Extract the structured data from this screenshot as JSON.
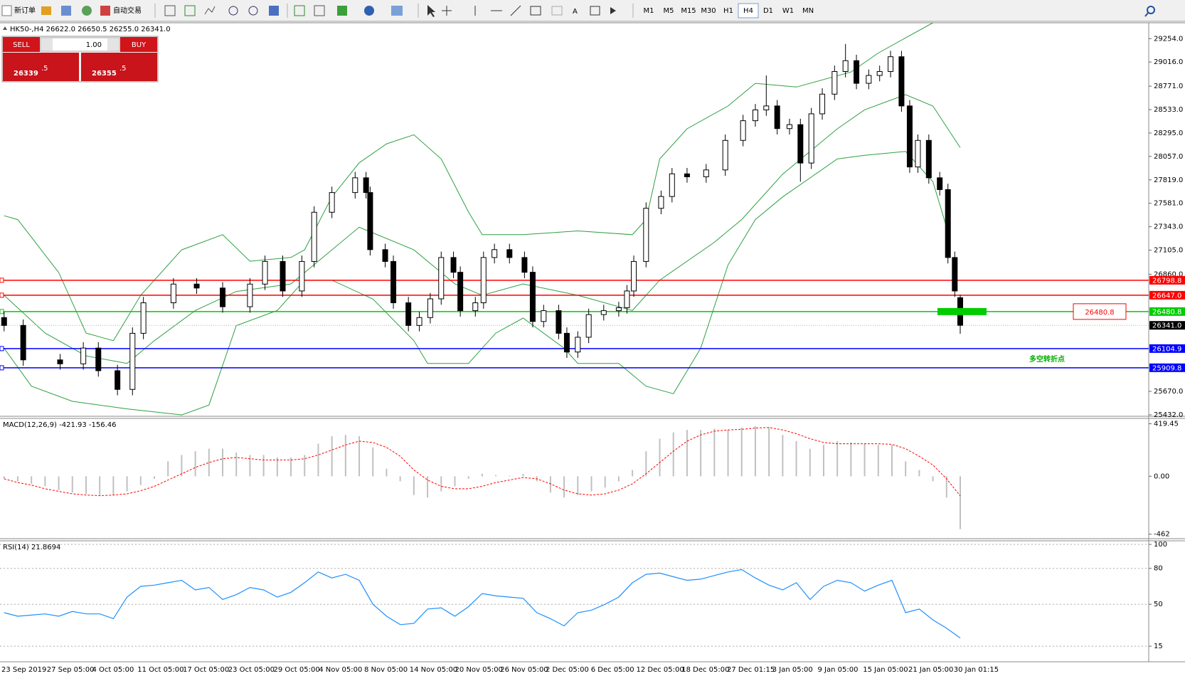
{
  "toolbar": {
    "new_order": "新订单",
    "auto_trading": "自动交易",
    "timeframes": [
      "M1",
      "M5",
      "M15",
      "M30",
      "H1",
      "H4",
      "D1",
      "W1",
      "MN"
    ]
  },
  "header": "HK50-,H4  26622.0 26650.5 26255.0 26341.0",
  "trade_panel": {
    "sell": "SELL",
    "lot": "1.00",
    "buy": "BUY",
    "bid": "26339",
    "bid_frac": ".5",
    "ask": "26355",
    "ask_frac": ".5"
  },
  "chart_data": [
    {
      "type": "candlestick",
      "xlim": [
        -0.3,
        83.8
      ],
      "ylim": [
        25417,
        29415
      ],
      "yticks": [
        {
          "value": 29254,
          "label": "29254.0"
        },
        {
          "value": 29016,
          "label": "29016.0"
        },
        {
          "value": 28771,
          "label": "28771.0"
        },
        {
          "value": 28533,
          "label": "28533.0"
        },
        {
          "value": 28295,
          "label": "28295.0"
        },
        {
          "value": 28057,
          "label": "28057.0"
        },
        {
          "value": 27819,
          "label": "27819.0"
        },
        {
          "value": 27581,
          "label": "27581.0"
        },
        {
          "value": 27343,
          "label": "27343.0"
        },
        {
          "value": 27105,
          "label": "27105.0"
        },
        {
          "value": 26860,
          "label": "26860.0"
        },
        {
          "value": 25670,
          "label": "25670.0"
        },
        {
          "value": 25432,
          "label": "25432.0"
        }
      ],
      "xtick_labels": [
        "23 Sep 2019",
        "27 Sep 05:00",
        "4 Oct 05:00",
        "11 Oct 05:00",
        "17 Oct 05:00",
        "23 Oct 05:00",
        "29 Oct 05:00",
        "4 Nov 05:00",
        "8 Nov 05:00",
        "14 Nov 05:00",
        "20 Nov 05:00",
        "26 Nov 05:00",
        "2 Dec 05:00",
        "6 Dec 05:00",
        "12 Dec 05:00",
        "18 Dec 05:00",
        "27 Dec 01:15",
        "3 Jan 05:00",
        "9 Jan 05:00",
        "15 Jan 05:00",
        "21 Jan 05:00",
        "30 Jan 01:15"
      ],
      "x": [
        0,
        1.4,
        4.1,
        5.8,
        6.9,
        8.3,
        9.4,
        10.2,
        12.4,
        14.1,
        16.0,
        18.0,
        19.1,
        20.4,
        21.8,
        22.7,
        24.0,
        25.7,
        26.5,
        26.8,
        27.9,
        28.5,
        29.6,
        30.4,
        31.2,
        32.0,
        32.9,
        33.4,
        34.5,
        35.1,
        35.9,
        37.0,
        38.1,
        38.7,
        39.5,
        40.6,
        41.2,
        42.0,
        42.8,
        43.9,
        45.0,
        45.6,
        46.1,
        47.0,
        48.1,
        48.9,
        50.0,
        51.4,
        52.8,
        54.1,
        55.0,
        55.8,
        56.6,
        57.5,
        58.3,
        59.1,
        59.9,
        60.8,
        61.6,
        62.4,
        63.3,
        64.1,
        64.9,
        65.7,
        66.3,
        66.9,
        67.7,
        68.5,
        69.1,
        69.6,
        70.0
      ],
      "open": [
        26420,
        26340,
        25990,
        25950,
        26110,
        25880,
        25690,
        26260,
        26570,
        26760,
        26720,
        26530,
        26760,
        26990,
        26690,
        26990,
        27490,
        27690,
        27840,
        27690,
        27110,
        26990,
        26570,
        26340,
        26420,
        26610,
        27030,
        26880,
        26490,
        26570,
        27030,
        27110,
        27030,
        26880,
        26380,
        26490,
        26260,
        26070,
        26220,
        26450,
        26490,
        26520,
        26690,
        26990,
        27530,
        27650,
        27880,
        27850,
        27920,
        28220,
        28420,
        28530,
        28570,
        28340,
        28380,
        27990,
        28490,
        28690,
        28920,
        29030,
        28800,
        28880,
        28920,
        29070,
        28570,
        27950,
        28220,
        27840,
        27720,
        27030,
        26622
      ],
      "high": [
        26480,
        26400,
        26050,
        26170,
        26170,
        25940,
        26320,
        26630,
        26820,
        26820,
        26780,
        26820,
        27050,
        27050,
        27050,
        27550,
        27750,
        27900,
        27900,
        27750,
        27170,
        27050,
        26630,
        26480,
        26670,
        27090,
        27090,
        26940,
        26630,
        27090,
        27170,
        27170,
        27090,
        26940,
        26550,
        26550,
        26320,
        26280,
        26510,
        26550,
        26580,
        26750,
        27050,
        27590,
        27710,
        27940,
        27940,
        27980,
        28280,
        28480,
        28590,
        28880,
        28630,
        28440,
        28440,
        28550,
        28750,
        28980,
        29200,
        29090,
        28940,
        28980,
        29130,
        29130,
        28630,
        28280,
        28280,
        27900,
        27780,
        27090,
        26650.5
      ],
      "low": [
        26280,
        25930,
        25890,
        25890,
        25820,
        25630,
        25630,
        26200,
        26510,
        26660,
        26470,
        26470,
        26700,
        26630,
        26630,
        26930,
        27430,
        27630,
        27630,
        27050,
        26930,
        26510,
        26280,
        26280,
        26360,
        26550,
        26820,
        26430,
        26430,
        26510,
        26970,
        26970,
        26820,
        26320,
        26320,
        26200,
        26010,
        26010,
        26160,
        26390,
        26430,
        26460,
        26630,
        26930,
        27470,
        27590,
        27790,
        27790,
        27860,
        28160,
        28360,
        28470,
        28280,
        28280,
        27800,
        27930,
        28430,
        28630,
        28860,
        28740,
        28740,
        28820,
        28860,
        28510,
        27890,
        27890,
        27780,
        27660,
        26970,
        26630,
        26255
      ],
      "close": [
        26340,
        25990,
        25950,
        26110,
        25880,
        25690,
        26260,
        26570,
        26760,
        26720,
        26530,
        26760,
        26990,
        26690,
        26990,
        27490,
        27690,
        27840,
        27690,
        27110,
        26990,
        26570,
        26340,
        26420,
        26610,
        27030,
        26880,
        26490,
        26570,
        27030,
        27110,
        27030,
        26880,
        26380,
        26490,
        26260,
        26070,
        26220,
        26450,
        26490,
        26520,
        26690,
        26990,
        27530,
        27650,
        27880,
        27850,
        27920,
        28220,
        28420,
        28530,
        28570,
        28340,
        28380,
        27990,
        28490,
        28690,
        28920,
        29030,
        28800,
        28880,
        28920,
        29070,
        28570,
        27950,
        28220,
        27840,
        27720,
        27030,
        26690,
        26341
      ],
      "color_up": "#ffffff",
      "color_down": "#000000",
      "bands": {
        "color": "#2ea043",
        "upper": {
          "x": [
            0,
            1,
            4,
            6,
            8,
            10,
            13,
            16,
            18,
            21,
            22,
            24,
            26,
            28,
            30,
            32,
            34,
            35,
            38,
            42,
            46,
            47,
            48,
            50,
            53,
            55,
            58,
            62,
            64,
            66,
            68
          ],
          "values": [
            27454,
            27415,
            26877,
            26262,
            26185,
            26646,
            27108,
            27262,
            26992,
            27031,
            27108,
            27646,
            27992,
            28185,
            28277,
            28031,
            27492,
            27262,
            27262,
            27300,
            27262,
            27415,
            28031,
            28338,
            28569,
            28800,
            28762,
            28915,
            29108,
            29262,
            29415
          ]
        },
        "middle": {
          "x": [
            0,
            3,
            6,
            9,
            11,
            14,
            17,
            21,
            23,
            26,
            30,
            33,
            35,
            38,
            42,
            46,
            48,
            52,
            54,
            57,
            61,
            63,
            66,
            68,
            70
          ],
          "values": [
            26646,
            26262,
            26031,
            25954,
            26185,
            26492,
            26685,
            26762,
            26992,
            27338,
            27108,
            26762,
            26646,
            26762,
            26646,
            26492,
            26800,
            27185,
            27415,
            27877,
            28338,
            28531,
            28685,
            28569,
            28146
          ]
        },
        "lower": {
          "x": [
            0,
            2,
            5,
            9,
            13,
            15,
            17,
            20,
            22,
            24,
            27,
            30,
            31,
            34,
            36,
            38,
            41,
            42,
            45,
            47,
            49,
            51,
            53,
            55,
            57,
            61,
            63,
            66,
            68,
            69
          ],
          "values": [
            26108,
            25723,
            25569,
            25492,
            25431,
            25531,
            26338,
            26492,
            26800,
            26800,
            26608,
            26185,
            25954,
            25954,
            26262,
            26415,
            26108,
            25954,
            25954,
            25723,
            25646,
            26108,
            26954,
            27415,
            27646,
            28031,
            28069,
            28108,
            27800,
            27338
          ]
        }
      },
      "levels": [
        {
          "value": 26798.8,
          "color": "#ff0000"
        },
        {
          "value": 26647,
          "label": "26647.0",
          "color": "#ff0000"
        },
        {
          "value": 26480.8,
          "color": "#00cc00"
        },
        {
          "value": 26104.9,
          "color": "#0000ff"
        },
        {
          "value": 25909.8,
          "color": "#0000ff"
        }
      ],
      "current_price": {
        "value": 26341,
        "label": "26341.0"
      },
      "annotation": "多空转折点",
      "annotation_color": "#00b000"
    },
    {
      "type": "macd",
      "title": "MACD(12,26,9) -421.93 -156.46",
      "xlim": [
        -0.3,
        83.8
      ],
      "ylim": [
        -498,
        462
      ],
      "yticks": [
        419.45,
        {
          "value": 0,
          "label": "0.00"
        },
        -462
      ],
      "color": "#c0c0c0",
      "values": [
        -20,
        -40,
        -60,
        -80,
        -110,
        -130,
        -140,
        -150,
        -150,
        -120,
        -70,
        -20,
        120,
        170,
        200,
        220,
        220,
        190,
        170,
        170,
        150,
        150,
        170,
        260,
        320,
        330,
        320,
        230,
        60,
        -40,
        -150,
        -170,
        -120,
        -80,
        -20,
        20,
        10,
        5,
        20,
        -40,
        -130,
        -170,
        -150,
        -120,
        -90,
        -40,
        50,
        200,
        300,
        350,
        370,
        370,
        380,
        370,
        390,
        400,
        390,
        330,
        280,
        220,
        250,
        280,
        270,
        260,
        250,
        250,
        120,
        50,
        -40,
        -170,
        -422
      ],
      "signal": {
        "color": "#ff0000",
        "values": [
          -20,
          -50,
          -70,
          -100,
          -120,
          -140,
          -150,
          -155,
          -150,
          -140,
          -115,
          -80,
          -30,
          20,
          70,
          110,
          140,
          150,
          140,
          130,
          130,
          130,
          140,
          170,
          210,
          250,
          280,
          270,
          230,
          160,
          50,
          -30,
          -80,
          -100,
          -100,
          -80,
          -50,
          -30,
          -10,
          -20,
          -60,
          -110,
          -140,
          -150,
          -140,
          -110,
          -60,
          20,
          110,
          200,
          280,
          330,
          360,
          370,
          375,
          385,
          390,
          370,
          340,
          300,
          270,
          260,
          260,
          260,
          260,
          255,
          220,
          160,
          90,
          -20,
          -156.46
        ]
      }
    },
    {
      "type": "line",
      "title": "RSI(14) 21.8694",
      "xlim": [
        -0.3,
        83.8
      ],
      "ylim": [
        2,
        103
      ],
      "yticks": [
        100,
        80,
        50,
        15
      ],
      "grid": true,
      "color": "#1e90ff",
      "values": [
        43,
        40,
        41,
        42,
        40,
        44,
        42,
        42,
        38,
        56,
        65,
        66,
        68,
        70,
        62,
        64,
        54,
        58,
        64,
        62,
        56,
        60,
        68,
        77,
        72,
        75,
        70,
        50,
        40,
        33,
        34,
        46,
        47,
        40,
        48,
        59,
        57,
        56,
        55,
        43,
        38,
        32,
        43,
        45,
        50,
        56,
        68,
        75,
        76,
        73,
        70,
        71,
        74,
        77,
        79,
        72,
        66,
        62,
        68,
        54,
        65,
        70,
        68,
        61,
        66,
        70,
        43,
        46,
        37,
        30,
        21.8694
      ]
    }
  ]
}
